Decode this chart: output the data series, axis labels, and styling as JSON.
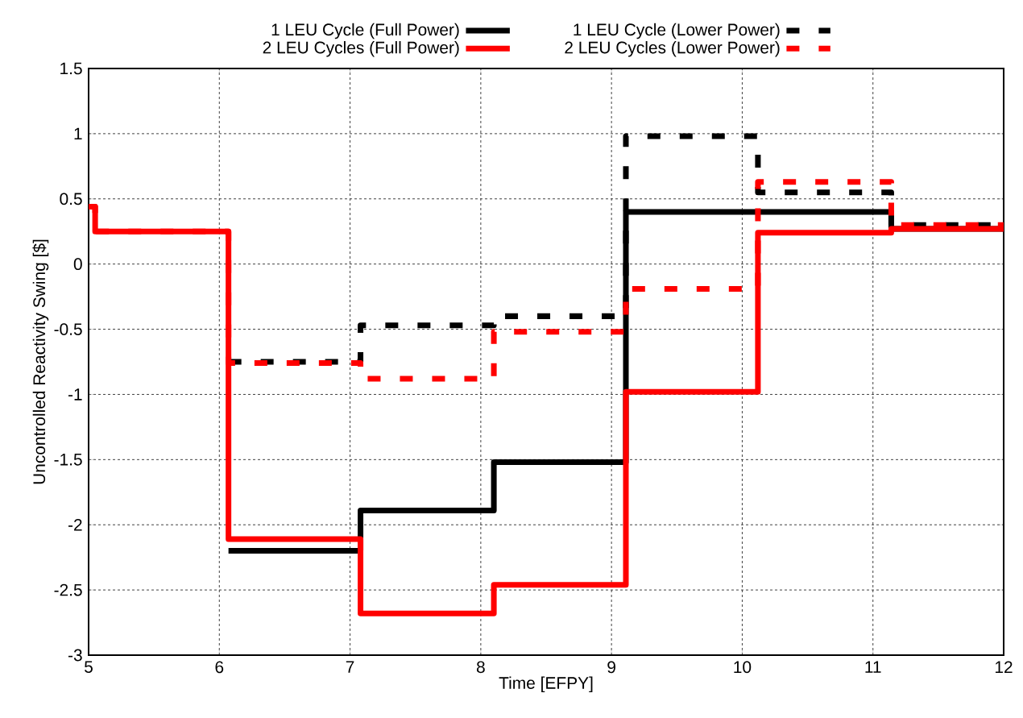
{
  "chart_data": {
    "type": "step",
    "xlabel": "Time [EFPY]",
    "ylabel": "Uncontrolled Reactivity Swing [$]",
    "x": [
      5,
      5.05,
      6.07,
      7.08,
      8.1,
      9.11,
      10.12,
      11.14,
      12
    ],
    "series": [
      {
        "name": "1 LEU Cycle (Full Power)",
        "color": "#000000",
        "line_style": "solid",
        "values": [
          null,
          null,
          -2.2,
          -1.89,
          -1.52,
          0.4,
          0.4,
          0.27,
          0.27
        ]
      },
      {
        "name": "1 LEU Cycle (Lower Power)",
        "color": "#000000",
        "line_style": "dashed",
        "values": [
          null,
          null,
          -0.75,
          -0.47,
          -0.4,
          0.98,
          0.55,
          0.3,
          0.3
        ]
      },
      {
        "name": "2 LEU Cycles (Full Power)",
        "color": "#ff0000",
        "line_style": "solid",
        "values": [
          0.44,
          0.25,
          -2.11,
          -2.68,
          -2.46,
          -0.98,
          0.24,
          0.27,
          0.27
        ]
      },
      {
        "name": "2 LEU Cycles (Lower Power)",
        "color": "#ff0000",
        "line_style": "dashed",
        "values": [
          0.44,
          0.25,
          -0.76,
          -0.88,
          -0.52,
          -0.19,
          0.63,
          0.3,
          0.3
        ]
      }
    ],
    "xlim": [
      5,
      12
    ],
    "ylim": [
      -3,
      1.5
    ],
    "xticks": [
      5,
      6,
      7,
      8,
      9,
      10,
      11,
      12
    ],
    "yticks": [
      -3,
      -2.5,
      -2,
      -1.5,
      -1,
      -0.5,
      0,
      0.5,
      1,
      1.5
    ],
    "grid": true,
    "legend": "top"
  }
}
